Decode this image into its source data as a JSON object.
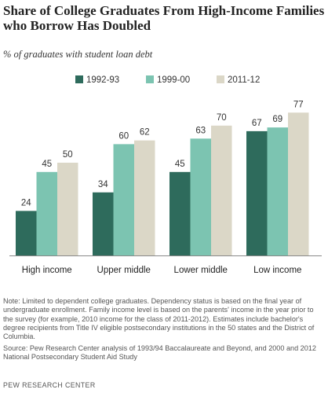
{
  "title": "Share of College Graduates From High-Income Families who Borrow Has Doubled",
  "subtitle": "% of graduates with student loan debt",
  "chart_data": {
    "type": "bar",
    "categories": [
      "High income",
      "Upper middle",
      "Lower middle",
      "Low income"
    ],
    "series": [
      {
        "name": "1992-93",
        "color": "#2e6b5c",
        "values": [
          24,
          34,
          45,
          67
        ]
      },
      {
        "name": "1999-00",
        "color": "#7cc4b1",
        "values": [
          45,
          60,
          63,
          69
        ]
      },
      {
        "name": "2011-12",
        "color": "#dbd7c7",
        "values": [
          50,
          62,
          70,
          77
        ]
      }
    ],
    "ylim": [
      0,
      100
    ],
    "legend": "top",
    "grid": false
  },
  "note": "Note: Limited to dependent college graduates. Dependency status is based on the final year of undergraduate enrollment. Family income level is based on the parents' income in the year prior to the survey (for example, 2010 income for the class of 2011-2012). Estimates include bachelor's degree recipients from Title IV eligible postsecondary institutions in the 50 states and the District of Columbia.",
  "source": "Source: Pew Research Center analysis of 1993/94 Baccalaureate and Beyond, and 2000 and 2012 National Postsecondary Student Aid Study",
  "brand": "PEW RESEARCH CENTER"
}
